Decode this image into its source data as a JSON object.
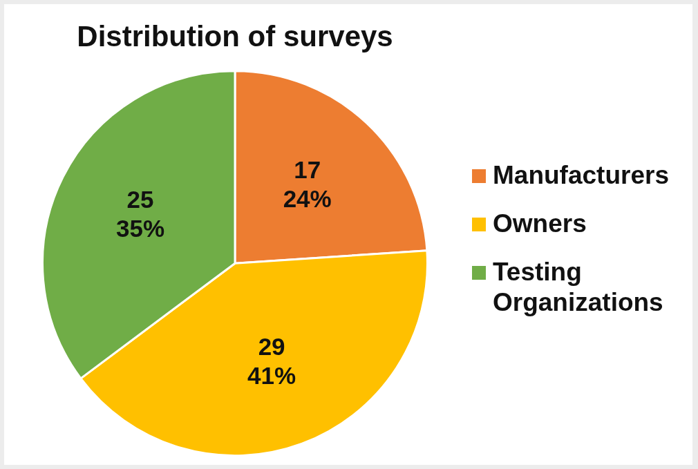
{
  "chart_data": {
    "type": "pie",
    "title": "Distribution of surveys",
    "categories": [
      "Manufacturers",
      "Owners",
      "Testing Organizations"
    ],
    "values": [
      17,
      29,
      25
    ],
    "colors": [
      "#ed7d31",
      "#ffc000",
      "#70ad47"
    ],
    "value_labels": [
      "17\n24%",
      "29\n41%",
      "25\n35%"
    ],
    "legend": "right"
  }
}
